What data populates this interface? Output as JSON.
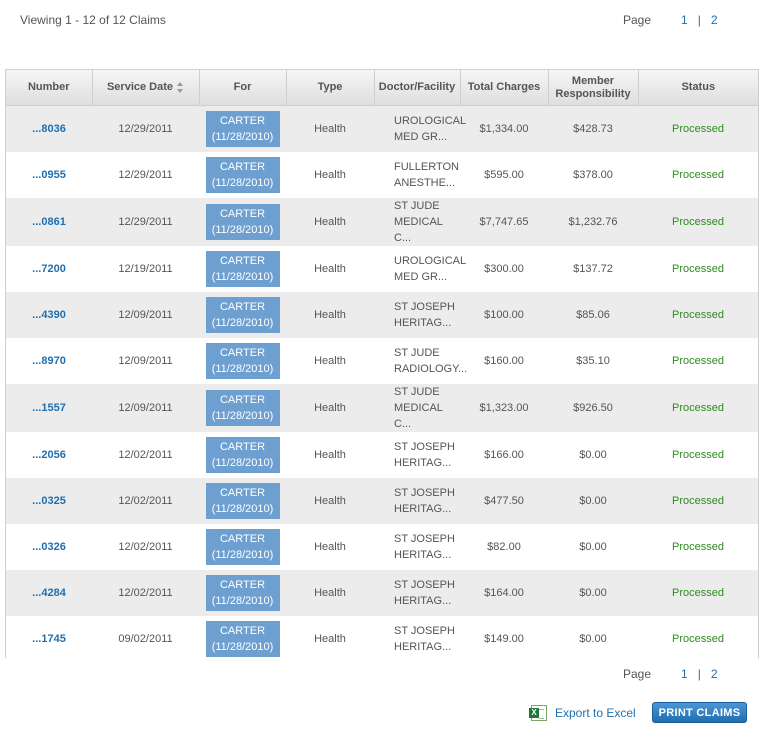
{
  "summary": {
    "viewing": "Viewing 1 - 12 of 12 Claims"
  },
  "pager": {
    "label": "Page",
    "pages": [
      "1",
      "2"
    ],
    "separator": "|"
  },
  "table": {
    "headers": {
      "number": "Number",
      "service_date": "Service Date",
      "for": "For",
      "type": "Type",
      "doctor": "Doctor/Facility",
      "total_charges": "Total Charges",
      "member_resp_line1": "Member",
      "member_resp_line2": "Responsibility",
      "status": "Status"
    },
    "rows": [
      {
        "number": "...8036",
        "date": "12/29/2011",
        "for_name": "CARTER",
        "for_date": "(11/28/2010)",
        "type": "Health",
        "doctor1": "UROLOGICAL",
        "doctor2": "MED GR...",
        "charges": "$1,334.00",
        "member": "$428.73",
        "status": "Processed"
      },
      {
        "number": "...0955",
        "date": "12/29/2011",
        "for_name": "CARTER",
        "for_date": "(11/28/2010)",
        "type": "Health",
        "doctor1": "FULLERTON",
        "doctor2": "ANESTHE...",
        "charges": "$595.00",
        "member": "$378.00",
        "status": "Processed"
      },
      {
        "number": "...0861",
        "date": "12/29/2011",
        "for_name": "CARTER",
        "for_date": "(11/28/2010)",
        "type": "Health",
        "doctor1": "ST JUDE",
        "doctor2": "MEDICAL C...",
        "charges": "$7,747.65",
        "member": "$1,232.76",
        "status": "Processed"
      },
      {
        "number": "...7200",
        "date": "12/19/2011",
        "for_name": "CARTER",
        "for_date": "(11/28/2010)",
        "type": "Health",
        "doctor1": "UROLOGICAL",
        "doctor2": "MED GR...",
        "charges": "$300.00",
        "member": "$137.72",
        "status": "Processed"
      },
      {
        "number": "...4390",
        "date": "12/09/2011",
        "for_name": "CARTER",
        "for_date": "(11/28/2010)",
        "type": "Health",
        "doctor1": "ST JOSEPH",
        "doctor2": "HERITAG...",
        "charges": "$100.00",
        "member": "$85.06",
        "status": "Processed"
      },
      {
        "number": "...8970",
        "date": "12/09/2011",
        "for_name": "CARTER",
        "for_date": "(11/28/2010)",
        "type": "Health",
        "doctor1": "ST JUDE",
        "doctor2": "RADIOLOGY...",
        "charges": "$160.00",
        "member": "$35.10",
        "status": "Processed"
      },
      {
        "number": "...1557",
        "date": "12/09/2011",
        "for_name": "CARTER",
        "for_date": "(11/28/2010)",
        "type": "Health",
        "doctor1": "ST JUDE",
        "doctor2": "MEDICAL C...",
        "charges": "$1,323.00",
        "member": "$926.50",
        "status": "Processed"
      },
      {
        "number": "...2056",
        "date": "12/02/2011",
        "for_name": "CARTER",
        "for_date": "(11/28/2010)",
        "type": "Health",
        "doctor1": "ST JOSEPH",
        "doctor2": "HERITAG...",
        "charges": "$166.00",
        "member": "$0.00",
        "status": "Processed"
      },
      {
        "number": "...0325",
        "date": "12/02/2011",
        "for_name": "CARTER",
        "for_date": "(11/28/2010)",
        "type": "Health",
        "doctor1": "ST JOSEPH",
        "doctor2": "HERITAG...",
        "charges": "$477.50",
        "member": "$0.00",
        "status": "Processed"
      },
      {
        "number": "...0326",
        "date": "12/02/2011",
        "for_name": "CARTER",
        "for_date": "(11/28/2010)",
        "type": "Health",
        "doctor1": "ST JOSEPH",
        "doctor2": "HERITAG...",
        "charges": "$82.00",
        "member": "$0.00",
        "status": "Processed"
      },
      {
        "number": "...4284",
        "date": "12/02/2011",
        "for_name": "CARTER",
        "for_date": "(11/28/2010)",
        "type": "Health",
        "doctor1": "ST JOSEPH",
        "doctor2": "HERITAG...",
        "charges": "$164.00",
        "member": "$0.00",
        "status": "Processed"
      },
      {
        "number": "...1745",
        "date": "09/02/2011",
        "for_name": "CARTER",
        "for_date": "(11/28/2010)",
        "type": "Health",
        "doctor1": "ST JOSEPH",
        "doctor2": "HERITAG...",
        "charges": "$149.00",
        "member": "$0.00",
        "status": "Processed"
      }
    ]
  },
  "actions": {
    "export_label": "Export to Excel",
    "export_icon": "excel-icon",
    "print_label": "PRINT CLAIMS"
  },
  "colors": {
    "link": "#1f6fb0",
    "status_processed": "#2e8b1f",
    "for_badge": "#6e9fd1"
  }
}
